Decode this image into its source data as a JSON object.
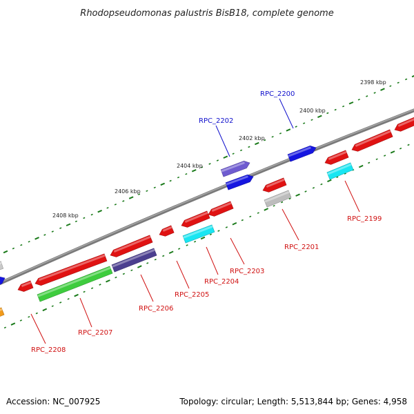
{
  "title": "Rhodopseudomonas palustris BisB18, complete genome",
  "accession": "Accession: NC_007925",
  "summary": "Topology: circular; Length: 5,513,844 bp; Genes: 4,958",
  "colors": {
    "backbone": "#7a7a7a",
    "tick": "#1a7a1a",
    "label_forward": "#1010cc",
    "label_reverse": "#d01010"
  },
  "kbp_labels": [
    "2398 kbp",
    "2400 kbp",
    "2402 kbp",
    "2404 kbp",
    "2406 kbp",
    "2408 kbp"
  ],
  "gene_labels": [
    {
      "text": "RPC_2200",
      "strand": "forward"
    },
    {
      "text": "RPC_2202",
      "strand": "forward"
    },
    {
      "text": "RPC_2199",
      "strand": "reverse"
    },
    {
      "text": "RPC_2201",
      "strand": "reverse"
    },
    {
      "text": "RPC_2203",
      "strand": "reverse"
    },
    {
      "text": "RPC_2204",
      "strand": "reverse"
    },
    {
      "text": "RPC_2205",
      "strand": "reverse"
    },
    {
      "text": "RPC_2206",
      "strand": "reverse"
    },
    {
      "text": "RPC_2207",
      "strand": "reverse"
    },
    {
      "text": "RPC_2208",
      "strand": "reverse"
    }
  ]
}
